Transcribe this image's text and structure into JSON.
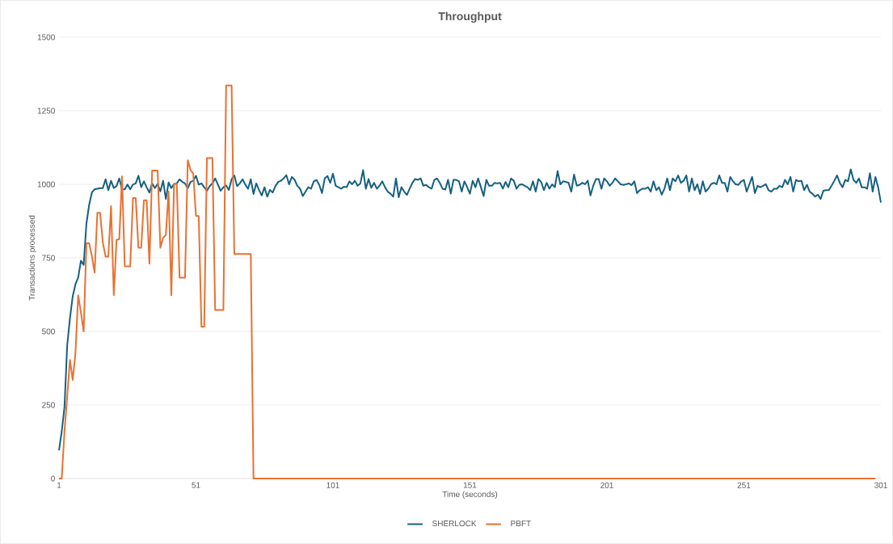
{
  "chart_data": {
    "type": "line",
    "title": "Throughput",
    "xlabel": "Time (seconds)",
    "ylabel": "Transactions processed",
    "x": [
      1,
      2,
      3,
      4,
      5,
      6,
      7,
      8,
      9,
      10,
      11,
      12,
      13,
      14,
      15,
      16,
      17,
      18,
      19,
      20,
      21,
      22,
      23,
      24,
      25,
      26,
      27,
      28,
      29,
      30,
      31,
      32,
      33,
      34,
      35,
      36,
      37,
      38,
      39,
      40,
      41,
      42,
      43,
      44,
      45,
      46,
      47,
      48,
      49,
      50,
      51,
      52,
      53,
      54,
      55,
      56,
      57,
      58,
      59,
      60,
      61,
      62,
      63,
      64,
      65,
      66,
      67,
      68,
      69,
      70,
      71,
      72,
      73,
      74,
      75,
      76,
      77,
      78,
      79,
      80,
      81,
      82,
      83,
      84,
      85,
      86,
      87,
      88,
      89,
      90,
      91,
      92,
      93,
      94,
      95,
      96,
      97,
      98,
      99,
      100,
      101,
      102,
      103,
      104,
      105,
      106,
      107,
      108,
      109,
      110,
      111,
      112,
      113,
      114,
      115,
      116,
      117,
      118,
      119,
      120,
      121,
      122,
      123,
      124,
      125,
      126,
      127,
      128,
      129,
      130,
      131,
      132,
      133,
      134,
      135,
      136,
      137,
      138,
      139,
      140,
      141,
      142,
      143,
      144,
      145,
      146,
      147,
      148,
      149,
      150,
      151,
      152,
      153,
      154,
      155,
      156,
      157,
      158,
      159,
      160,
      161,
      162,
      163,
      164,
      165,
      166,
      167,
      168,
      169,
      170,
      171,
      172,
      173,
      174,
      175,
      176,
      177,
      178,
      179,
      180,
      181,
      182,
      183,
      184,
      185,
      186,
      187,
      188,
      189,
      190,
      191,
      192,
      193,
      194,
      195,
      196,
      197,
      198,
      199,
      200,
      201,
      202,
      203,
      204,
      205,
      206,
      207,
      208,
      209,
      210,
      211,
      212,
      213,
      214,
      215,
      216,
      217,
      218,
      219,
      220,
      221,
      222,
      223,
      224,
      225,
      226,
      227,
      228,
      229,
      230,
      231,
      232,
      233,
      234,
      235,
      236,
      237,
      238,
      239,
      240,
      241,
      242,
      243,
      244,
      245,
      246,
      247,
      248,
      249,
      250,
      251,
      252,
      253,
      254,
      255,
      256,
      257,
      258,
      259,
      260,
      261,
      262,
      263,
      264,
      265,
      266,
      267,
      268,
      269,
      270,
      271,
      272,
      273,
      274,
      275,
      276,
      277,
      278,
      279,
      280,
      281,
      282,
      283,
      284,
      285,
      286,
      287,
      288,
      289,
      290,
      291,
      292,
      293,
      294,
      295,
      296,
      297,
      298,
      299,
      300,
      301
    ],
    "series": [
      {
        "name": "SHERLOCK",
        "color": "#156082",
        "values": [
          96,
          160,
          243,
          454,
          545,
          619,
          660,
          683,
          740,
          726,
          866,
          930,
          972,
          983,
          985,
          987,
          987,
          1017,
          980,
          1012,
          987,
          994,
          1020,
          983,
          983,
          999,
          983,
          999,
          1003,
          1029,
          990,
          1010,
          990,
          972,
          1003,
          987,
          1001,
          976,
          1012,
          950,
          1006,
          987,
          1001,
          1003,
          1017,
          1008,
          1003,
          987,
          1008,
          1012,
          1029,
          999,
          1003,
          990,
          978,
          994,
          1003,
          1020,
          999,
          978,
          990,
          996,
          981,
          1017,
          1030,
          994,
          1003,
          1017,
          999,
          985,
          1017,
          967,
          1003,
          981,
          962,
          990,
          958,
          981,
          972,
          994,
          1008,
          1012,
          1020,
          1031,
          1000,
          1025,
          1015,
          995,
          985,
          960,
          975,
          990,
          985,
          1010,
          1015,
          998,
          970,
          1020,
          1028,
          1005,
          1036,
          995,
          990,
          985,
          992,
          990,
          1010,
          1000,
          1012,
          995,
          1003,
          1048,
          985,
          1018,
          988,
          1005,
          985,
          995,
          1010,
          990,
          975,
          968,
          958,
          1020,
          956,
          990,
          975,
          964,
          985,
          1005,
          1018,
          1015,
          1020,
          995,
          998,
          990,
          985,
          1015,
          1020,
          1005,
          985,
          982,
          1015,
          968,
          1015,
          1015,
          1010,
          975,
          1010,
          990,
          968,
          1012,
          990,
          1020,
          990,
          960,
          1015,
          995,
          995,
          1005,
          1003,
          1005,
          985,
          1008,
          990,
          1020,
          1012,
          985,
          998,
          1000,
          995,
          990,
          980,
          1010,
          975,
          1018,
          1008,
          980,
          1005,
          985,
          1000,
          990,
          1045,
          1000,
          1010,
          1008,
          1005,
          975,
          1033,
          995,
          998,
          1005,
          1000,
          1012,
          962,
          995,
          1018,
          1018,
          985,
          1020,
          1010,
          995,
          1005,
          1020,
          1010,
          1000,
          998,
          1000,
          1003,
          997,
          1010,
          970,
          980,
          985,
          985,
          990,
          975,
          1010,
          980,
          990,
          965,
          985,
          1020,
          980,
          1020,
          1010,
          1030,
          1005,
          1012,
          1030,
          975,
          1020,
          980,
          1000,
          967,
          1010,
          975,
          985,
          1000,
          1005,
          1000,
          1030,
          1005,
          1005,
          975,
          1025,
          1010,
          1000,
          998,
          1010,
          1015,
          975,
          1000,
          1025,
          970,
          995,
          990,
          995,
          1000,
          980,
          975,
          985,
          985,
          995,
          990,
          1015,
          1000,
          1025,
          975,
          1015,
          1010,
          1012,
          980,
          998,
          975,
          968,
          958,
          965,
          950,
          978,
          980,
          980,
          995,
          1012,
          1030,
          1005,
          990,
          1015,
          1010,
          1051,
          1015,
          1005,
          1020,
          990,
          990,
          985,
          1038,
          975,
          1025,
          990,
          938
        ]
      },
      {
        "name": "PBFT",
        "color": "#e97132",
        "values": [
          0,
          0,
          160,
          280,
          403,
          335,
          426,
          623,
          564,
          500,
          800,
          800,
          756,
          700,
          903,
          903,
          802,
          754,
          754,
          926,
          623,
          811,
          813,
          1027,
          721,
          721,
          721,
          953,
          953,
          784,
          784,
          946,
          946,
          730,
          1047,
          1047,
          1047,
          784,
          818,
          828,
          976,
          623,
          1001,
          1001,
          683,
          683,
          683,
          1082,
          1049,
          1036,
          892,
          892,
          516,
          516,
          1089,
          1089,
          1089,
          573,
          573,
          573,
          573,
          1336,
          1336,
          1336,
          763,
          763,
          763,
          763,
          763,
          763,
          763,
          0,
          0,
          0,
          0,
          0,
          0,
          0,
          0,
          0,
          0,
          0,
          0,
          0,
          0,
          0,
          0,
          0,
          0,
          0,
          0,
          0,
          0,
          0,
          0,
          0,
          0,
          0,
          0,
          0,
          0,
          0,
          0,
          0,
          0,
          0,
          0,
          0,
          0,
          0,
          0,
          0,
          0,
          0,
          0,
          0,
          0,
          0,
          0,
          0,
          0,
          0,
          0,
          0,
          0,
          0,
          0,
          0,
          0,
          0,
          0,
          0,
          0,
          0,
          0,
          0,
          0,
          0,
          0,
          0,
          0,
          0,
          0,
          0,
          0,
          0,
          0,
          0,
          0,
          0,
          0,
          0,
          0,
          0,
          0,
          0,
          0,
          0,
          0,
          0,
          0,
          0,
          0,
          0,
          0,
          0,
          0,
          0,
          0,
          0,
          0,
          0,
          0,
          0,
          0,
          0,
          0,
          0,
          0,
          0,
          0,
          0,
          0,
          0,
          0,
          0,
          0,
          0,
          0,
          0,
          0,
          0,
          0,
          0,
          0,
          0,
          0,
          0,
          0,
          0,
          0,
          0,
          0,
          0,
          0,
          0,
          0,
          0,
          0,
          0,
          0,
          0,
          0,
          0,
          0,
          0,
          0,
          0,
          0,
          0,
          0,
          0,
          0,
          0,
          0,
          0,
          0,
          0,
          0,
          0,
          0,
          0,
          0,
          0,
          0,
          0,
          0,
          0,
          0,
          0,
          0,
          0,
          0,
          0,
          0,
          0,
          0,
          0,
          0,
          0,
          0,
          0,
          0,
          0,
          0,
          0,
          0,
          0,
          0,
          0,
          0,
          0,
          0,
          0,
          0,
          0,
          0,
          0,
          0,
          0,
          0,
          0,
          0,
          0,
          0,
          0,
          0,
          0,
          0,
          0,
          0,
          0,
          0,
          0,
          0,
          0,
          0,
          0,
          0,
          0,
          0,
          0,
          0,
          0,
          0,
          0,
          0,
          0,
          0,
          null,
          null
        ]
      }
    ],
    "xlim": [
      1,
      301
    ],
    "xticks": [
      1,
      51,
      101,
      151,
      201,
      251,
      301
    ],
    "ylim": [
      0,
      1500
    ],
    "yticks": [
      0,
      250,
      500,
      750,
      1000,
      1250,
      1500
    ],
    "grid": "y",
    "legend": "bottom",
    "marker": "none",
    "line_style": "solid"
  }
}
